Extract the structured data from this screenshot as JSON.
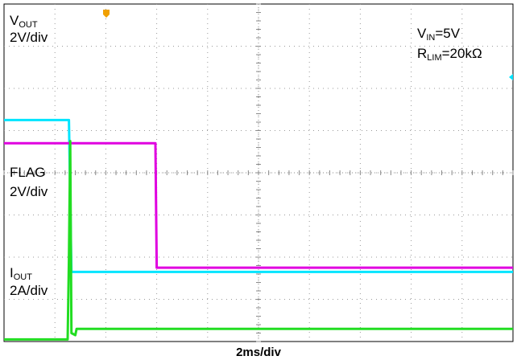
{
  "chart_data": {
    "type": "line",
    "title": "",
    "xlabel": "2ms/div",
    "x_unit": "ms",
    "x_range": [
      0,
      20
    ],
    "grid": true,
    "grid_divisions": {
      "x": 10,
      "y": 8
    },
    "conditions": {
      "vin": {
        "main": "V",
        "sub": "IN",
        "value": "=5V"
      },
      "rlim": {
        "main": "R",
        "sub": "LIM",
        "value": "=20kΩ"
      }
    },
    "series": [
      {
        "key": "vout",
        "color": "#00e5ff",
        "label_main": "V",
        "label_sub": "OUT",
        "scale": "2V/div",
        "x": [
          0,
          2.55,
          2.65,
          20
        ],
        "y": [
          5.25,
          5.25,
          1.65,
          1.65
        ]
      },
      {
        "key": "flag",
        "color": "#e000e0",
        "label_main": "FLAG",
        "label_sub": "",
        "scale": "2V/div",
        "x": [
          0,
          5.95,
          6.0,
          20
        ],
        "y": [
          4.7,
          4.7,
          1.75,
          1.75
        ]
      },
      {
        "key": "iout",
        "color": "#22dd22",
        "label_main": "I",
        "label_sub": "OUT",
        "scale": "2A/div",
        "x": [
          0,
          2.5,
          2.55,
          2.6,
          2.65,
          2.8,
          2.85,
          20
        ],
        "y": [
          0.05,
          0.05,
          1.95,
          4.75,
          0.2,
          0.15,
          0.3,
          0.3
        ]
      }
    ]
  }
}
